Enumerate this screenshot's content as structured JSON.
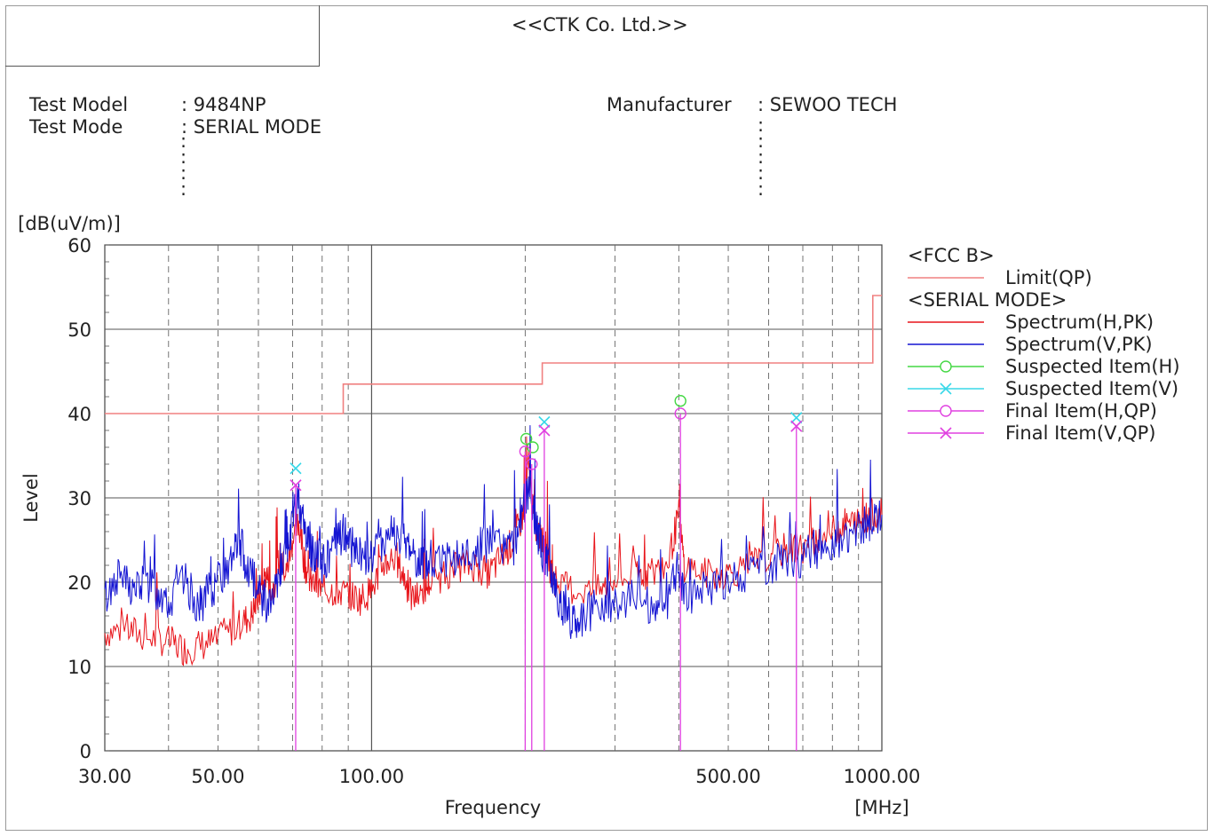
{
  "header": {
    "company": "<<CTK Co. Ltd.>>",
    "test_model_label": "Test Model",
    "test_model_value": ": 9484NP",
    "test_mode_label": "Test Mode",
    "test_mode_value": ": SERIAL MODE",
    "manufacturer_label": "Manufacturer",
    "manufacturer_value": ": SEWOO TECH"
  },
  "legend": {
    "group1": "<FCC B>",
    "limit": "Limit(QP)",
    "group2": "<SERIAL MODE>",
    "spec_h": "Spectrum(H,PK)",
    "spec_v": "Spectrum(V,PK)",
    "susp_h": "Suspected Item(H)",
    "susp_v": "Suspected Item(V)",
    "final_h": "Final Item(H,QP)",
    "final_v": "Final Item(V,QP)"
  },
  "colors": {
    "limit": "#f08080",
    "spec_h": "#e8141a",
    "spec_v": "#1414d2",
    "susp_h": "#44d844",
    "susp_v": "#38d8e8",
    "final_h": "#e040e0",
    "final_v": "#e040e0"
  },
  "chart_data": {
    "type": "line",
    "xscale": "log",
    "xlim": [
      30,
      1000
    ],
    "ylim": [
      0,
      60
    ],
    "ylabel": "Level",
    "yunit": "[dB(uV/m)]",
    "xlabel": "Frequency",
    "xunit": "[MHz]",
    "xticks": [
      {
        "value": 30,
        "label": "30.00"
      },
      {
        "value": 50,
        "label": "50.00"
      },
      {
        "value": 100,
        "label": "100.00"
      },
      {
        "value": 500,
        "label": "500.00"
      },
      {
        "value": 1000,
        "label": "1000.00"
      }
    ],
    "yticks": [
      0,
      10,
      20,
      30,
      40,
      50,
      60
    ],
    "limit_qp": [
      [
        30,
        40
      ],
      [
        88,
        40
      ],
      [
        88,
        43.5
      ],
      [
        216,
        43.5
      ],
      [
        216,
        46
      ],
      [
        960,
        46
      ],
      [
        960,
        54
      ],
      [
        1000,
        54
      ]
    ],
    "spectrum_h_pk": [
      [
        30,
        14
      ],
      [
        33,
        14.5
      ],
      [
        36,
        13.5
      ],
      [
        40,
        13
      ],
      [
        43,
        12
      ],
      [
        46,
        12.5
      ],
      [
        50,
        13
      ],
      [
        55,
        15
      ],
      [
        58,
        16
      ],
      [
        60,
        18
      ],
      [
        62,
        21
      ],
      [
        64,
        19
      ],
      [
        66,
        23
      ],
      [
        68,
        21
      ],
      [
        70,
        25
      ],
      [
        72,
        27
      ],
      [
        74,
        22
      ],
      [
        76,
        20
      ],
      [
        80,
        19
      ],
      [
        85,
        19
      ],
      [
        90,
        18.5
      ],
      [
        95,
        18
      ],
      [
        100,
        19
      ],
      [
        105,
        22
      ],
      [
        110,
        23
      ],
      [
        115,
        21
      ],
      [
        120,
        18
      ],
      [
        125,
        18.5
      ],
      [
        130,
        20
      ],
      [
        140,
        21
      ],
      [
        150,
        22
      ],
      [
        160,
        22
      ],
      [
        170,
        21
      ],
      [
        180,
        23
      ],
      [
        190,
        25
      ],
      [
        198,
        28
      ],
      [
        203,
        34
      ],
      [
        208,
        27
      ],
      [
        215,
        25
      ],
      [
        220,
        24
      ],
      [
        225,
        21
      ],
      [
        230,
        20
      ],
      [
        250,
        19
      ],
      [
        280,
        19
      ],
      [
        300,
        20
      ],
      [
        330,
        21
      ],
      [
        350,
        21
      ],
      [
        380,
        22
      ],
      [
        400,
        28
      ],
      [
        410,
        22
      ],
      [
        450,
        21
      ],
      [
        500,
        21
      ],
      [
        550,
        22
      ],
      [
        600,
        23
      ],
      [
        650,
        24
      ],
      [
        700,
        24
      ],
      [
        750,
        25
      ],
      [
        800,
        26
      ],
      [
        850,
        27
      ],
      [
        900,
        27
      ],
      [
        950,
        28
      ],
      [
        1000,
        28
      ]
    ],
    "spectrum_v_pk": [
      [
        30,
        18
      ],
      [
        32,
        21
      ],
      [
        34,
        19
      ],
      [
        36,
        20
      ],
      [
        38,
        19
      ],
      [
        40,
        18
      ],
      [
        43,
        20
      ],
      [
        46,
        17
      ],
      [
        48,
        19
      ],
      [
        50,
        20
      ],
      [
        53,
        22
      ],
      [
        55,
        25
      ],
      [
        57,
        22
      ],
      [
        60,
        19
      ],
      [
        63,
        17
      ],
      [
        66,
        20
      ],
      [
        68,
        23
      ],
      [
        70,
        27
      ],
      [
        72,
        30
      ],
      [
        74,
        26
      ],
      [
        76,
        24
      ],
      [
        78,
        23
      ],
      [
        80,
        22
      ],
      [
        84,
        24
      ],
      [
        88,
        26
      ],
      [
        92,
        24
      ],
      [
        96,
        23
      ],
      [
        100,
        23
      ],
      [
        105,
        25
      ],
      [
        110,
        26
      ],
      [
        115,
        25
      ],
      [
        120,
        24
      ],
      [
        125,
        22
      ],
      [
        130,
        22
      ],
      [
        140,
        23
      ],
      [
        150,
        23
      ],
      [
        160,
        23
      ],
      [
        170,
        25
      ],
      [
        180,
        24
      ],
      [
        190,
        24
      ],
      [
        198,
        29
      ],
      [
        205,
        31
      ],
      [
        210,
        27
      ],
      [
        215,
        24
      ],
      [
        222,
        22
      ],
      [
        230,
        19
      ],
      [
        240,
        16
      ],
      [
        250,
        15.5
      ],
      [
        260,
        16
      ],
      [
        280,
        17
      ],
      [
        300,
        18
      ],
      [
        330,
        18
      ],
      [
        360,
        17
      ],
      [
        380,
        18
      ],
      [
        400,
        22
      ],
      [
        410,
        18
      ],
      [
        450,
        19
      ],
      [
        500,
        20
      ],
      [
        550,
        21
      ],
      [
        600,
        22
      ],
      [
        650,
        23
      ],
      [
        700,
        23
      ],
      [
        750,
        24
      ],
      [
        800,
        25
      ],
      [
        850,
        25
      ],
      [
        900,
        26
      ],
      [
        950,
        27
      ],
      [
        1000,
        28
      ]
    ],
    "suspected_h": [
      [
        201,
        37
      ],
      [
        207,
        36
      ],
      [
        403,
        41.5
      ]
    ],
    "suspected_v": [
      [
        71,
        33.5
      ],
      [
        218,
        39
      ],
      [
        680,
        39.5
      ]
    ],
    "final_h_qp": [
      [
        200,
        35.5
      ],
      [
        206,
        34
      ],
      [
        403,
        40
      ]
    ],
    "final_v_qp": [
      [
        71,
        31.5
      ],
      [
        218,
        38
      ],
      [
        680,
        38.5
      ]
    ]
  }
}
